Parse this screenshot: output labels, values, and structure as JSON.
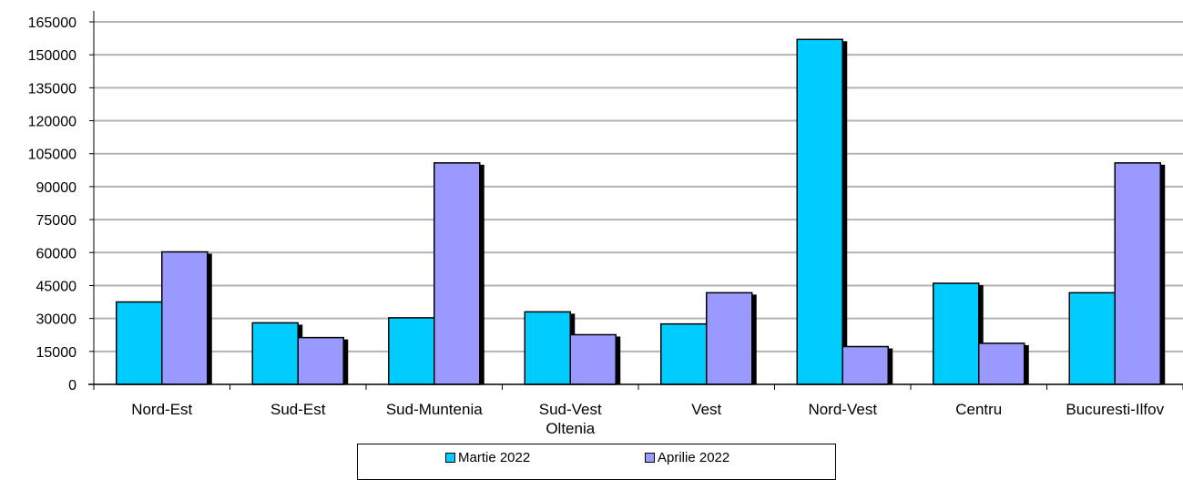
{
  "chart_data": {
    "type": "bar",
    "categories": [
      "Nord-Est",
      "Sud-Est",
      "Sud-Muntenia",
      "Sud-Vest\nOltenia",
      "Vest",
      "Nord-Vest",
      "Centru",
      "Bucuresti-Ilfov"
    ],
    "series": [
      {
        "name": "Martie 2022",
        "color": "#00CCFF",
        "values": [
          37500,
          28000,
          30300,
          33000,
          27500,
          157000,
          46000,
          41700
        ]
      },
      {
        "name": "Aprilie 2022",
        "color": "#9999FF",
        "values": [
          60300,
          21300,
          100800,
          22600,
          41700,
          17200,
          18700,
          100800
        ]
      }
    ],
    "ylim": [
      0,
      165000
    ],
    "yticks": [
      0,
      15000,
      30000,
      45000,
      60000,
      75000,
      90000,
      105000,
      120000,
      135000,
      150000,
      165000
    ],
    "grid": true,
    "legend_position": "bottom",
    "title": "",
    "xlabel": "",
    "ylabel": ""
  }
}
